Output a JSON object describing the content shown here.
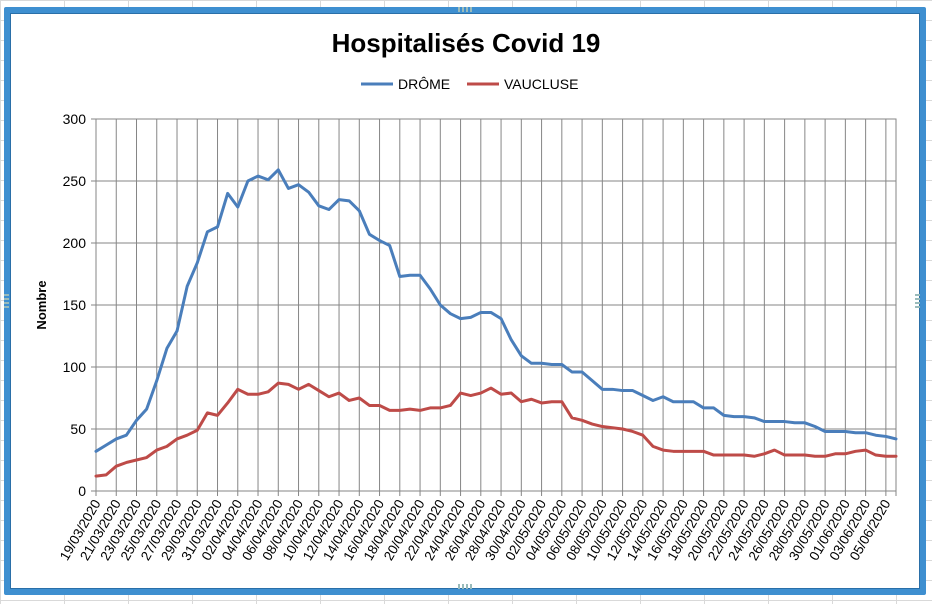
{
  "chart_data": {
    "type": "line",
    "title": "Hospitalisés Covid 19",
    "xlabel": "",
    "ylabel": "Nombre",
    "ylim": [
      0,
      300
    ],
    "yticks": [
      0,
      50,
      100,
      150,
      200,
      250,
      300
    ],
    "grid": true,
    "legend_position": "top",
    "x_tick_labels": [
      "19/03/2020",
      "21/03/2020",
      "23/03/2020",
      "25/03/2020",
      "27/03/2020",
      "29/03/2020",
      "31/03/2020",
      "02/04/2020",
      "04/04/2020",
      "06/04/2020",
      "08/04/2020",
      "10/04/2020",
      "12/04/2020",
      "14/04/2020",
      "16/04/2020",
      "18/04/2020",
      "20/04/2020",
      "22/04/2020",
      "24/04/2020",
      "26/04/2020",
      "28/04/2020",
      "30/04/2020",
      "02/05/2020",
      "04/05/2020",
      "06/05/2020",
      "08/05/2020",
      "10/05/2020",
      "12/05/2020",
      "14/05/2020",
      "16/05/2020",
      "18/05/2020",
      "20/05/2020",
      "22/05/2020",
      "24/05/2020",
      "26/05/2020",
      "28/05/2020",
      "30/05/2020",
      "01/06/2020",
      "03/06/2020",
      "05/06/2020"
    ],
    "series": [
      {
        "name": "DRÔME",
        "color": "#4a7ebb",
        "values": [
          32,
          37,
          42,
          45,
          57,
          66,
          89,
          115,
          129,
          165,
          184,
          209,
          213,
          240,
          229,
          250,
          254,
          251,
          259,
          244,
          247,
          241,
          230,
          227,
          235,
          234,
          226,
          207,
          202,
          198,
          173,
          174,
          174,
          163,
          150,
          143,
          139,
          140,
          144,
          144,
          139,
          122,
          109,
          103,
          103,
          102,
          102,
          96,
          96,
          89,
          82,
          82,
          81,
          81,
          77,
          73,
          76,
          72,
          72,
          72,
          67,
          67,
          61,
          60,
          60,
          59,
          56,
          56,
          56,
          55,
          55,
          52,
          48,
          48,
          48,
          47,
          47,
          45,
          44,
          42
        ],
        "dates_start": "19/03/2020"
      },
      {
        "name": "VAUCLUSE",
        "color": "#be4b48",
        "values": [
          12,
          13,
          20,
          23,
          25,
          27,
          33,
          36,
          42,
          45,
          49,
          63,
          61,
          71,
          82,
          78,
          78,
          80,
          87,
          86,
          82,
          86,
          81,
          76,
          79,
          73,
          75,
          69,
          69,
          65,
          65,
          66,
          65,
          67,
          67,
          69,
          79,
          77,
          79,
          83,
          78,
          79,
          72,
          74,
          71,
          72,
          72,
          59,
          57,
          54,
          52,
          51,
          50,
          48,
          45,
          36,
          33,
          32,
          32,
          32,
          32,
          29,
          29,
          29,
          29,
          28,
          30,
          33,
          29,
          29,
          29,
          28,
          28,
          30,
          30,
          32,
          33,
          29,
          28,
          28
        ]
      }
    ]
  }
}
